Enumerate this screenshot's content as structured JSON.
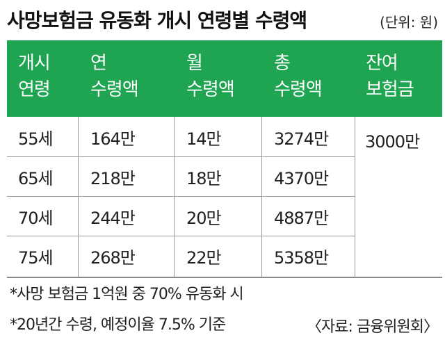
{
  "header": {
    "title": "사망보험금 유동화 개시 연령별 수령액",
    "unit": "(단위: 원)"
  },
  "table": {
    "columns": [
      {
        "line1": "개시",
        "line2": "연령"
      },
      {
        "line1": "연",
        "line2": "수령액"
      },
      {
        "line1": "월",
        "line2": "수령액"
      },
      {
        "line1": "총",
        "line2": "수령액"
      },
      {
        "line1": "잔여",
        "line2": "보험금"
      }
    ],
    "rows": [
      {
        "age": "55세",
        "annual": "164만",
        "monthly": "14만",
        "total": "3274만"
      },
      {
        "age": "65세",
        "annual": "218만",
        "monthly": "18만",
        "total": "4370만"
      },
      {
        "age": "70세",
        "annual": "244만",
        "monthly": "20만",
        "total": "4887만"
      },
      {
        "age": "75세",
        "annual": "268만",
        "monthly": "22만",
        "total": "5358만"
      }
    ],
    "remaining_benefit": "3000만"
  },
  "notes": [
    "*사망 보험금 1억원 중 70% 유동화 시",
    "*20년간 수령, 예정이율 7.5% 기준"
  ],
  "source": "〈자료: 금융위원회〉",
  "colors": {
    "header_green": "#1fa551",
    "header_text": "#ffffff",
    "grid_line": "#9a9a9a"
  }
}
